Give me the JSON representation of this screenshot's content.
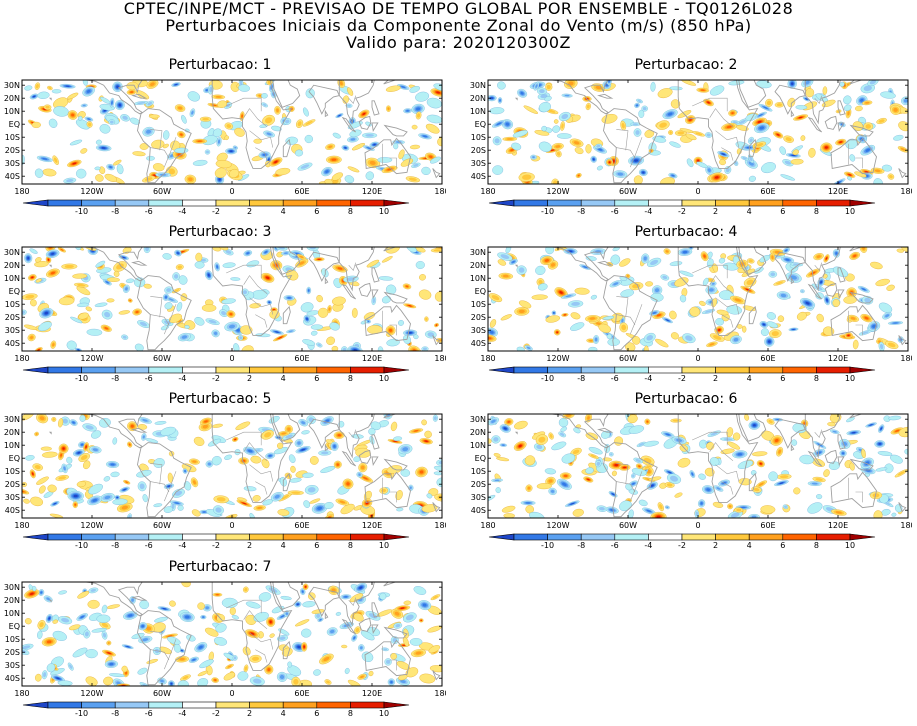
{
  "header": {
    "line1": "CPTEC/INPE/MCT - PREVISAO DE TEMPO GLOBAL POR ENSEMBLE - TQ0126L028",
    "line2": "Perturbacoes Iniciais da Componente Zonal do Vento (m/s) (850 hPa)",
    "line3": "Valido para: 2020120300Z"
  },
  "panels": [
    {
      "title": "Perturbacao: 1"
    },
    {
      "title": "Perturbacao: 2"
    },
    {
      "title": "Perturbacao: 3"
    },
    {
      "title": "Perturbacao: 4"
    },
    {
      "title": "Perturbacao: 5"
    },
    {
      "title": "Perturbacao: 6"
    },
    {
      "title": "Perturbacao: 7"
    }
  ],
  "lat_labels": [
    "30N",
    "20N",
    "10N",
    "EQ",
    "10S",
    "20S",
    "30S",
    "40S"
  ],
  "lon_labels": [
    "180",
    "120W",
    "60W",
    "0",
    "60E",
    "120E",
    "180"
  ],
  "colorbar": {
    "labels": [
      "-10",
      "-8",
      "-6",
      "-4",
      "-2",
      "2",
      "4",
      "6",
      "8",
      "10"
    ],
    "colors": [
      "#1e46c8",
      "#3278e6",
      "#5aa0f0",
      "#96c8f5",
      "#b4f0f5",
      "#ffffff",
      "#ffe678",
      "#ffc83c",
      "#ffa01e",
      "#ff6400",
      "#e61e00",
      "#a00000"
    ]
  },
  "map_colors": {
    "coast": "#a0a0a0",
    "border": "#000000"
  }
}
